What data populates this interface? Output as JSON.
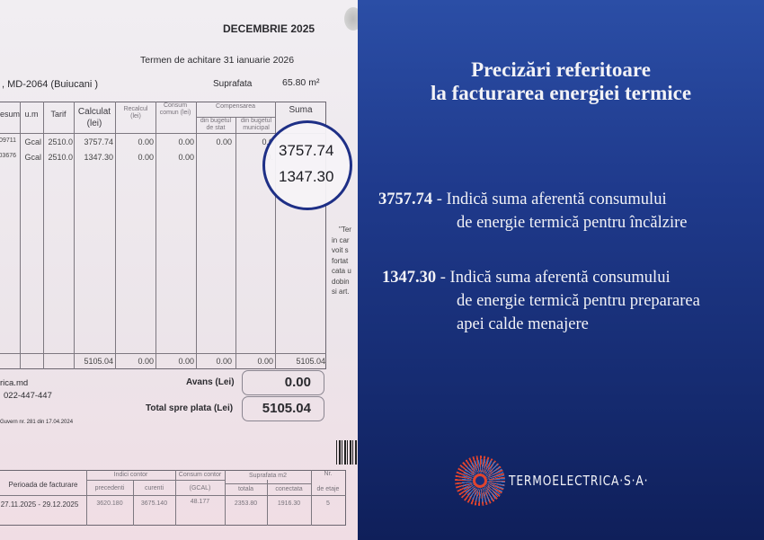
{
  "invoice": {
    "month": "DECEMBRIE 2025",
    "due": "Termen de achitare 31 ianuarie   2026",
    "address": ", MD-2064 (Buiucani )",
    "area_label": "Suprafata",
    "area_value": "65.80 m²",
    "headers": [
      "esum",
      "u.m",
      "Tarif",
      "Calculat (lei)",
      "Recalcul (lei)",
      "Consum comun (lei)",
      "Compensarea",
      "din bugetul de stat",
      "din bugetul municipal",
      "Suma"
    ],
    "rows": [
      {
        "c0": "09711",
        "um": "Gcal",
        "tarif": "2510.0",
        "calc": "3757.74",
        "recalc": "0.00",
        "comun": "0.00",
        "stat": "0.00",
        "mun": "0.0"
      },
      {
        "c0": "03676",
        "um": "Gcal",
        "tarif": "2510.0",
        "calc": "1347.30",
        "recalc": "0.00",
        "comun": "0.00",
        "stat": "",
        "mun": "0."
      }
    ],
    "circled": [
      "3757.74",
      "1347.30"
    ],
    "totals": {
      "calc": "5105.04",
      "recalc": "0.00",
      "comun": "0.00",
      "stat": "0.00",
      "mun": "0.00",
      "suma": "5105.04"
    },
    "site": "rica.md",
    "phone": "022-447-447",
    "decree": "Guvern nr. 281 din 17.04.2024",
    "avans_label": "Avans (Lei)",
    "avans": "0.00",
    "total_label": "Total spre plata (Lei)",
    "total": "5105.04",
    "side_note": [
      "\"Ter",
      "in car",
      "voit s",
      "fortat",
      "cata u",
      "dobin",
      "si art."
    ],
    "bottom": {
      "headers": {
        "period": "Perioada de facturare",
        "indici": "Indici contor",
        "precedent": "precedenti",
        "curent": "curenti",
        "consum": "Consum contor",
        "gcal": "(GCAL)",
        "supr": "Suprafata m2",
        "totala": "totala",
        "conectata": "conectata",
        "nr": "Nr.",
        "etaje": "de etaje"
      },
      "row": {
        "period": "27.11.2025 - 29.12.2025",
        "precedent": "3620.180",
        "curent": "3675.140",
        "gcal": "48.177",
        "totala": "2353.80",
        "conectata": "1916.30",
        "etaje": "5"
      }
    }
  },
  "panel": {
    "title_line1": "Precizări referitoare",
    "title_line2": "la facturarea energiei termice",
    "items": [
      {
        "amount": "3757.74",
        "dash": " - ",
        "line1": "Indică suma aferentă consumului",
        "line2": "de energie termică pentru încălzire",
        "line3": ""
      },
      {
        "amount": "1347.30",
        "dash": " - ",
        "line1": "Indică suma aferentă consumului",
        "line2": "de energie termică pentru prepararea",
        "line3": "apei calde menajere"
      }
    ],
    "logo_text": "TERMOELECTRICA·S·A·"
  },
  "colors": {
    "panel_top": "#2b4ea6",
    "panel_bottom": "#0f1f5a",
    "circle": "#1e2f86",
    "logo_red": "#e0442e",
    "logo_blue": "#3a7fd8"
  }
}
